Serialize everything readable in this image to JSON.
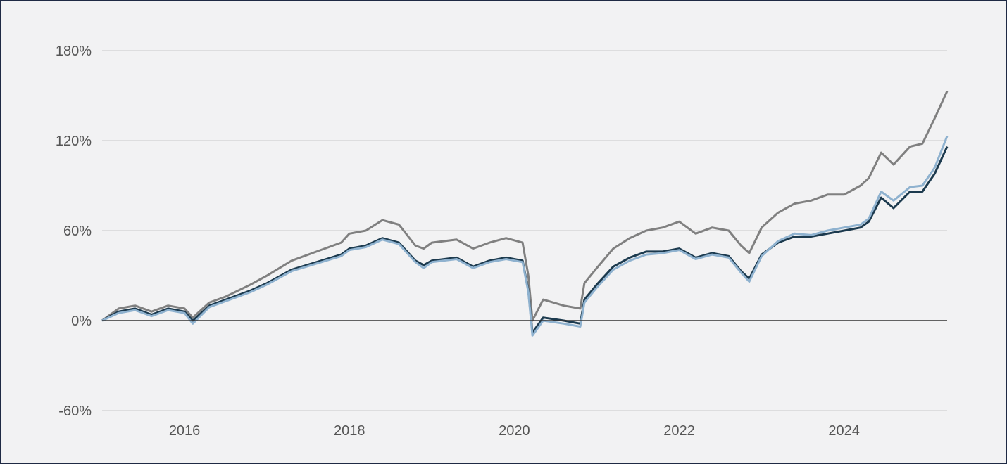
{
  "chart_data": {
    "type": "line",
    "title": "",
    "xlabel": "",
    "ylabel": "",
    "x_range": [
      2015.0,
      2025.25
    ],
    "ylim": [
      -60,
      180
    ],
    "y_ticks": [
      -60,
      0,
      60,
      120,
      180
    ],
    "y_tick_labels": [
      "-60%",
      "0%",
      "60%",
      "120%",
      "180%"
    ],
    "x_ticks": [
      2016,
      2018,
      2020,
      2022,
      2024
    ],
    "x_tick_labels": [
      "2016",
      "2018",
      "2020",
      "2022",
      "2024"
    ],
    "grid": true,
    "legend": "none",
    "series": [
      {
        "color": "#808080",
        "x": [
          2015.0,
          2015.2,
          2015.4,
          2015.6,
          2015.8,
          2016.0,
          2016.1,
          2016.3,
          2016.5,
          2016.8,
          2017.0,
          2017.3,
          2017.6,
          2017.9,
          2018.0,
          2018.2,
          2018.4,
          2018.6,
          2018.8,
          2018.9,
          2019.0,
          2019.3,
          2019.5,
          2019.7,
          2019.9,
          2020.1,
          2020.17,
          2020.22,
          2020.35,
          2020.6,
          2020.8,
          2020.85,
          2021.0,
          2021.2,
          2021.4,
          2021.6,
          2021.8,
          2022.0,
          2022.2,
          2022.4,
          2022.6,
          2022.75,
          2022.85,
          2023.0,
          2023.2,
          2023.4,
          2023.6,
          2023.8,
          2024.0,
          2024.2,
          2024.3,
          2024.45,
          2024.6,
          2024.8,
          2024.95,
          2025.1,
          2025.25
        ],
        "values": [
          0,
          8,
          10,
          6,
          10,
          8,
          2,
          12,
          16,
          24,
          30,
          40,
          46,
          52,
          58,
          60,
          67,
          64,
          50,
          48,
          52,
          54,
          48,
          52,
          55,
          52,
          30,
          0,
          14,
          10,
          8,
          25,
          35,
          48,
          55,
          60,
          62,
          66,
          58,
          62,
          60,
          50,
          45,
          62,
          72,
          78,
          80,
          84,
          84,
          90,
          95,
          112,
          104,
          116,
          118,
          135,
          153
        ]
      },
      {
        "color": "#1c3a4e",
        "x": [
          2015.0,
          2015.2,
          2015.4,
          2015.6,
          2015.8,
          2016.0,
          2016.1,
          2016.3,
          2016.5,
          2016.8,
          2017.0,
          2017.3,
          2017.6,
          2017.9,
          2018.0,
          2018.2,
          2018.4,
          2018.6,
          2018.8,
          2018.9,
          2019.0,
          2019.3,
          2019.5,
          2019.7,
          2019.9,
          2020.1,
          2020.17,
          2020.22,
          2020.35,
          2020.6,
          2020.8,
          2020.85,
          2021.0,
          2021.2,
          2021.4,
          2021.6,
          2021.8,
          2022.0,
          2022.2,
          2022.4,
          2022.6,
          2022.75,
          2022.85,
          2023.0,
          2023.2,
          2023.4,
          2023.6,
          2023.8,
          2024.0,
          2024.2,
          2024.3,
          2024.45,
          2024.6,
          2024.8,
          2024.95,
          2025.1,
          2025.25
        ],
        "values": [
          0,
          6,
          8,
          4,
          8,
          6,
          0,
          10,
          14,
          20,
          25,
          34,
          39,
          44,
          48,
          50,
          55,
          52,
          40,
          37,
          40,
          42,
          36,
          40,
          42,
          40,
          20,
          -8,
          2,
          0,
          -2,
          14,
          24,
          36,
          42,
          46,
          46,
          48,
          42,
          45,
          43,
          33,
          28,
          44,
          52,
          56,
          56,
          58,
          60,
          62,
          66,
          82,
          75,
          86,
          86,
          98,
          116
        ]
      },
      {
        "color": "#8fb2cf",
        "x": [
          2015.0,
          2015.2,
          2015.4,
          2015.6,
          2015.8,
          2016.0,
          2016.1,
          2016.3,
          2016.5,
          2016.8,
          2017.0,
          2017.3,
          2017.6,
          2017.9,
          2018.0,
          2018.2,
          2018.4,
          2018.6,
          2018.8,
          2018.9,
          2019.0,
          2019.3,
          2019.5,
          2019.7,
          2019.9,
          2020.1,
          2020.17,
          2020.22,
          2020.35,
          2020.6,
          2020.8,
          2020.85,
          2021.0,
          2021.2,
          2021.4,
          2021.6,
          2021.8,
          2022.0,
          2022.2,
          2022.4,
          2022.6,
          2022.75,
          2022.85,
          2023.0,
          2023.2,
          2023.4,
          2023.6,
          2023.8,
          2024.0,
          2024.2,
          2024.3,
          2024.45,
          2024.6,
          2024.8,
          2024.95,
          2025.1,
          2025.25
        ],
        "values": [
          0,
          5,
          7,
          3,
          7,
          5,
          -2,
          9,
          13,
          19,
          24,
          33,
          38,
          43,
          47,
          49,
          54,
          51,
          39,
          35,
          39,
          41,
          35,
          39,
          41,
          39,
          19,
          -10,
          0,
          -2,
          -4,
          12,
          22,
          34,
          40,
          44,
          45,
          47,
          41,
          44,
          42,
          32,
          26,
          43,
          53,
          58,
          57,
          60,
          62,
          64,
          68,
          86,
          80,
          89,
          90,
          102,
          123
        ]
      }
    ]
  }
}
